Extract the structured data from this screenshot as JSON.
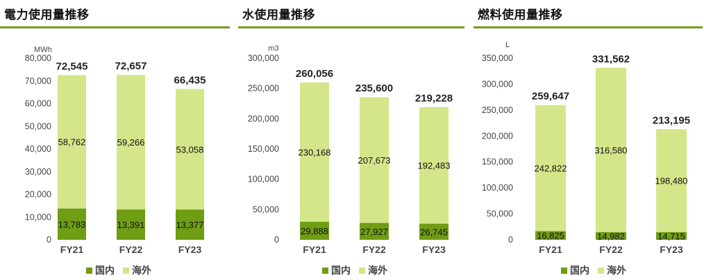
{
  "colors": {
    "domestic": "#6f9d14",
    "overseas": "#d4e68a",
    "rule": "#6e9f1e",
    "axis_text": "#444444",
    "total_text": "#222222"
  },
  "legend": {
    "domestic": "国内",
    "overseas": "海外"
  },
  "chart_data": [
    {
      "type": "bar",
      "stacked": true,
      "title": "電力使用量推移",
      "unit": "MWh",
      "categories": [
        "FY21",
        "FY22",
        "FY23"
      ],
      "ylim": [
        0,
        80000
      ],
      "yticks": [
        0,
        10000,
        20000,
        30000,
        40000,
        50000,
        60000,
        70000,
        80000
      ],
      "ytick_labels": [
        "0",
        "10,000",
        "20,000",
        "30,000",
        "40,000",
        "50,000",
        "60,000",
        "70,000",
        "80,000"
      ],
      "series": [
        {
          "name": "国内",
          "values": [
            13783,
            13391,
            13377
          ],
          "labels": [
            "13,783",
            "13,391",
            "13,377"
          ]
        },
        {
          "name": "海外",
          "values": [
            58762,
            59266,
            53058
          ],
          "labels": [
            "58,762",
            "59,266",
            "53,058"
          ]
        }
      ],
      "totals": [
        72545,
        72657,
        66435
      ],
      "total_labels": [
        "72,545",
        "72,657",
        "66,435"
      ],
      "legend_position": "bottom",
      "grid": false
    },
    {
      "type": "bar",
      "stacked": true,
      "title": "水使用量推移",
      "unit": "m3",
      "categories": [
        "FY21",
        "FY22",
        "FY23"
      ],
      "ylim": [
        0,
        300000
      ],
      "yticks": [
        0,
        50000,
        100000,
        150000,
        200000,
        250000,
        300000
      ],
      "ytick_labels": [
        "0",
        "50,000",
        "100,000",
        "150,000",
        "200,000",
        "250,000",
        "300,000"
      ],
      "series": [
        {
          "name": "国内",
          "values": [
            29888,
            27927,
            26745
          ],
          "labels": [
            "29,888",
            "27,927",
            "26,745"
          ]
        },
        {
          "name": "海外",
          "values": [
            230168,
            207673,
            192483
          ],
          "labels": [
            "230,168",
            "207,673",
            "192,483"
          ]
        }
      ],
      "totals": [
        260056,
        235600,
        219228
      ],
      "total_labels": [
        "260,056",
        "235,600",
        "219,228"
      ],
      "legend_position": "bottom",
      "grid": false
    },
    {
      "type": "bar",
      "stacked": true,
      "title": "燃料使用量推移",
      "unit": "L",
      "categories": [
        "FY21",
        "FY22",
        "FY23"
      ],
      "ylim": [
        0,
        350000
      ],
      "yticks": [
        0,
        50000,
        100000,
        150000,
        200000,
        250000,
        300000,
        350000
      ],
      "ytick_labels": [
        "0",
        "50,000",
        "100,000",
        "150,000",
        "200,000",
        "250,000",
        "300,000",
        "350,000"
      ],
      "series": [
        {
          "name": "国内",
          "values": [
            16825,
            14982,
            14715
          ],
          "labels": [
            "16,825",
            "14,982",
            "14,715"
          ]
        },
        {
          "name": "海外",
          "values": [
            242822,
            316580,
            198480
          ],
          "labels": [
            "242,822",
            "316,580",
            "198,480"
          ]
        }
      ],
      "totals": [
        259647,
        331562,
        213195
      ],
      "total_labels": [
        "259,647",
        "331,562",
        "213,195"
      ],
      "legend_position": "bottom",
      "grid": false
    }
  ]
}
